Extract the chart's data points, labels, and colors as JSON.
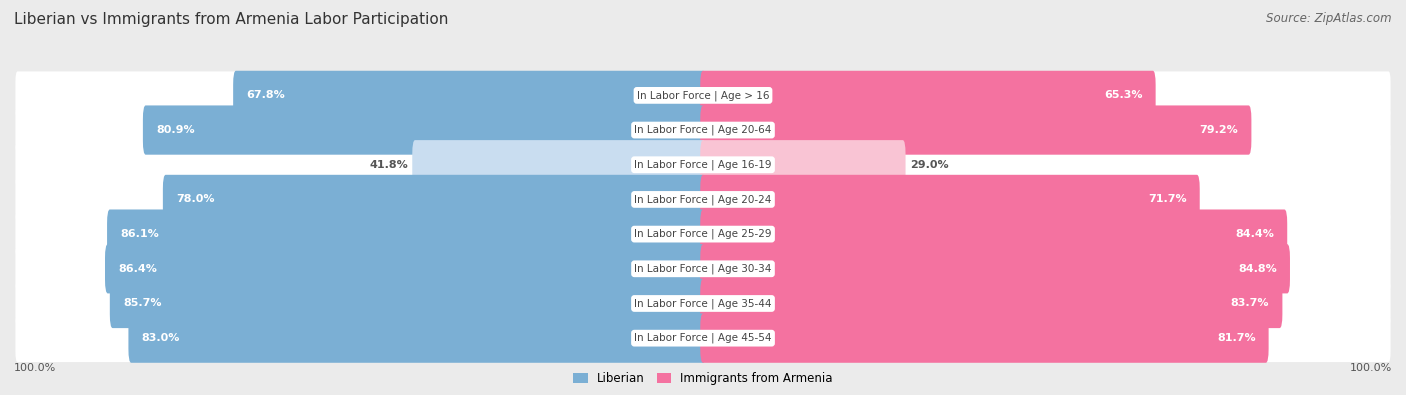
{
  "title": "Liberian vs Immigrants from Armenia Labor Participation",
  "source": "Source: ZipAtlas.com",
  "categories": [
    "In Labor Force | Age > 16",
    "In Labor Force | Age 20-64",
    "In Labor Force | Age 16-19",
    "In Labor Force | Age 20-24",
    "In Labor Force | Age 25-29",
    "In Labor Force | Age 30-34",
    "In Labor Force | Age 35-44",
    "In Labor Force | Age 45-54"
  ],
  "liberian_values": [
    67.8,
    80.9,
    41.8,
    78.0,
    86.1,
    86.4,
    85.7,
    83.0
  ],
  "armenia_values": [
    65.3,
    79.2,
    29.0,
    71.7,
    84.4,
    84.8,
    83.7,
    81.7
  ],
  "liberian_color_strong": "#7BAFD4",
  "liberian_color_light": "#C9DDF0",
  "armenia_color_strong": "#F472A0",
  "armenia_color_light": "#F9C4D4",
  "label_liberian": "Liberian",
  "label_armenia": "Immigrants from Armenia",
  "bg_color": "#EBEBEB",
  "row_bg_color": "#FFFFFF",
  "threshold": 55,
  "max_val": 100,
  "title_fontsize": 11,
  "source_fontsize": 8.5,
  "bar_label_fontsize": 8,
  "category_fontsize": 7.5,
  "legend_fontsize": 8.5,
  "axis_label_fontsize": 8
}
